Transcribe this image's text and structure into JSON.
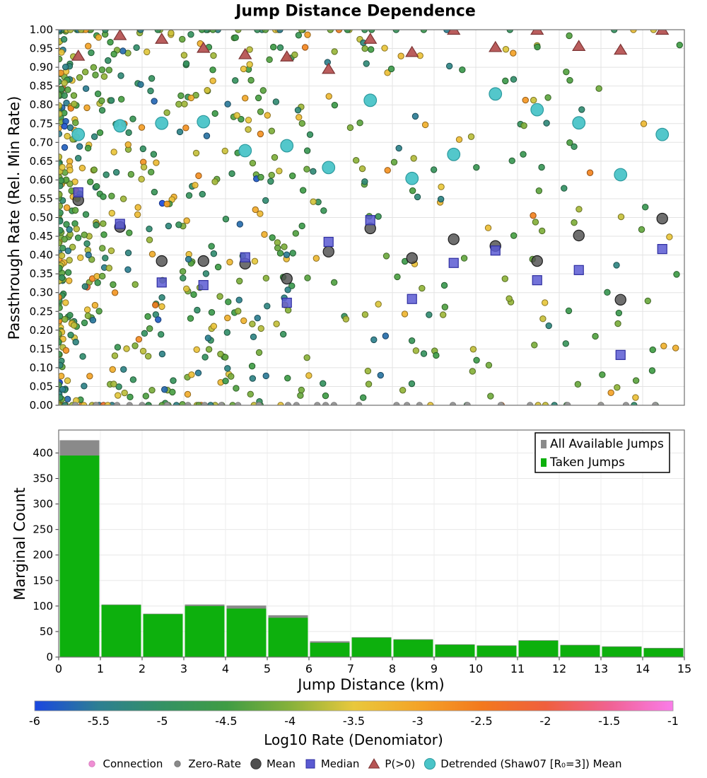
{
  "chart_data": [
    {
      "type": "scatter",
      "title": "Jump Distance Dependence",
      "ylabel": "Passthrough Rate (Rel. Min Rate)",
      "xlabel": "",
      "xlim": [
        0,
        15
      ],
      "ylim": [
        0,
        1
      ],
      "grid": true,
      "yticks": [
        "0.00",
        "0.05",
        "0.10",
        "0.15",
        "0.20",
        "0.25",
        "0.30",
        "0.35",
        "0.40",
        "0.45",
        "0.50",
        "0.55",
        "0.60",
        "0.65",
        "0.70",
        "0.75",
        "0.80",
        "0.85",
        "0.90",
        "0.95",
        "1.00"
      ],
      "series": [
        {
          "name": "Mean",
          "marker": "circle-large",
          "color": "#4f4f4f",
          "edge": "#1c1c1c",
          "opacity": 0.82,
          "points": [
            [
              0.47,
              0.546
            ],
            [
              1.47,
              0.475
            ],
            [
              2.47,
              0.384
            ],
            [
              3.47,
              0.384
            ],
            [
              4.47,
              0.377
            ],
            [
              5.47,
              0.337
            ],
            [
              6.47,
              0.409
            ],
            [
              7.47,
              0.471
            ],
            [
              8.47,
              0.392
            ],
            [
              9.47,
              0.442
            ],
            [
              10.47,
              0.424
            ],
            [
              11.47,
              0.384
            ],
            [
              12.47,
              0.452
            ],
            [
              13.47,
              0.281
            ],
            [
              14.47,
              0.497
            ]
          ]
        },
        {
          "name": "Median",
          "marker": "square",
          "color": "#5a5ad2",
          "edge": "#2e2ea0",
          "opacity": 0.85,
          "points": [
            [
              0.47,
              0.567
            ],
            [
              1.47,
              0.483
            ],
            [
              2.47,
              0.327
            ],
            [
              3.47,
              0.32
            ],
            [
              4.47,
              0.394
            ],
            [
              5.47,
              0.273
            ],
            [
              6.47,
              0.435
            ],
            [
              7.47,
              0.493
            ],
            [
              8.47,
              0.283
            ],
            [
              9.47,
              0.379
            ],
            [
              10.47,
              0.412
            ],
            [
              11.47,
              0.333
            ],
            [
              12.47,
              0.36
            ],
            [
              13.47,
              0.134
            ],
            [
              14.47,
              0.416
            ]
          ]
        },
        {
          "name": "P(>0)",
          "marker": "triangle",
          "color": "#b65454",
          "edge": "#7c3434",
          "opacity": 0.95,
          "points": [
            [
              0.47,
              0.93
            ],
            [
              1.47,
              0.985
            ],
            [
              2.47,
              0.975
            ],
            [
              3.47,
              0.951
            ],
            [
              4.47,
              0.934
            ],
            [
              5.47,
              0.928
            ],
            [
              6.47,
              0.895
            ],
            [
              7.47,
              0.975
            ],
            [
              8.47,
              0.94
            ],
            [
              9.47,
              0.999
            ],
            [
              10.47,
              0.953
            ],
            [
              11.47,
              0.999
            ],
            [
              12.47,
              0.956
            ],
            [
              13.47,
              0.946
            ],
            [
              14.47,
              0.999
            ]
          ]
        },
        {
          "name": "Detrended (Shaw07 [R₀=3]) Mean",
          "marker": "circle-medium",
          "color": "#4ac4c8",
          "edge": "#2d9a9e",
          "opacity": 0.95,
          "points": [
            [
              0.47,
              0.721
            ],
            [
              1.47,
              0.744
            ],
            [
              2.47,
              0.751
            ],
            [
              3.47,
              0.755
            ],
            [
              4.47,
              0.678
            ],
            [
              5.47,
              0.691
            ],
            [
              6.47,
              0.633
            ],
            [
              7.47,
              0.812
            ],
            [
              8.47,
              0.604
            ],
            [
              9.47,
              0.668
            ],
            [
              10.47,
              0.829
            ],
            [
              11.47,
              0.787
            ],
            [
              12.47,
              0.752
            ],
            [
              13.47,
              0.614
            ],
            [
              14.47,
              0.721
            ]
          ]
        },
        {
          "name": "Zero-Rate",
          "marker": "dot",
          "color": "#9a9a9a",
          "edge": "#7d7d7d",
          "opacity": 1,
          "points": [
            [
              0.4,
              0
            ],
            [
              0.9,
              0
            ],
            [
              1.4,
              0
            ],
            [
              1.7,
              0
            ],
            [
              2.0,
              0
            ],
            [
              2.6,
              0
            ],
            [
              3.1,
              0
            ],
            [
              3.5,
              0
            ],
            [
              3.9,
              0
            ],
            [
              4.3,
              0
            ],
            [
              4.8,
              0
            ],
            [
              5.5,
              0
            ],
            [
              5.7,
              0
            ],
            [
              6.2,
              0
            ],
            [
              6.4,
              0
            ],
            [
              6.6,
              0
            ],
            [
              7.2,
              0
            ],
            [
              8.1,
              0
            ],
            [
              8.35,
              0
            ],
            [
              8.65,
              0
            ],
            [
              9.45,
              0
            ],
            [
              9.8,
              0
            ],
            [
              10.6,
              0
            ],
            [
              11.3,
              0
            ],
            [
              12.2,
              0
            ],
            [
              13.0,
              0
            ],
            [
              13.6,
              0
            ],
            [
              14.3,
              0
            ]
          ]
        }
      ],
      "background_points": {
        "note": "dense colored connection cloud, color = Log10 rate via colorbar colormap",
        "seed": 42,
        "bin_counts": [
          280,
          72,
          60,
          70,
          66,
          54,
          20,
          27,
          24,
          17,
          16,
          22,
          17,
          14,
          12
        ],
        "top_edge_fraction": 0.08,
        "bottom_edge_fraction": 0.04,
        "value_segments": [
          [
            -6.0,
            -5.55,
            0.03
          ],
          [
            -5.55,
            -4.95,
            0.17
          ],
          [
            -4.95,
            -4.35,
            0.28
          ],
          [
            -4.35,
            -3.65,
            0.3
          ],
          [
            -3.65,
            -3.15,
            0.15
          ],
          [
            -3.15,
            -2.55,
            0.06
          ],
          [
            -2.55,
            -2.2,
            0.01
          ]
        ]
      }
    },
    {
      "type": "bar",
      "ylabel": "Marginal Count",
      "xlabel": "Jump Distance (km)",
      "categories": [
        "0-1",
        "1-2",
        "2-3",
        "3-4",
        "4-5",
        "5-6",
        "6-7",
        "7-8",
        "8-9",
        "9-10",
        "10-11",
        "11-12",
        "12-13",
        "13-14",
        "14-15"
      ],
      "series": [
        {
          "name": "All Available Jumps",
          "color": "#8a8a8a",
          "values": [
            425,
            103,
            85,
            103,
            101,
            82,
            31,
            39,
            35,
            25,
            23,
            33,
            24,
            21,
            18
          ]
        },
        {
          "name": "Taken Jumps",
          "color": "#0db00d",
          "values": [
            395,
            102,
            84,
            100,
            95,
            77,
            28,
            38,
            34,
            24,
            22,
            32,
            23,
            20,
            17
          ]
        }
      ],
      "yticks": [
        0,
        50,
        100,
        150,
        200,
        250,
        300,
        350,
        400
      ],
      "xticks": [
        0,
        1,
        2,
        3,
        4,
        5,
        6,
        7,
        8,
        9,
        10,
        11,
        12,
        13,
        14,
        15
      ],
      "ylim": [
        0,
        445
      ],
      "legend_position": "top-right"
    },
    {
      "type": "colorbar",
      "label": "Log10 Rate (Denomiator)",
      "ticks": [
        "-6",
        "-5.5",
        "-5",
        "-4.5",
        "-4",
        "-3.5",
        "-3",
        "-2.5",
        "-2",
        "-1.5",
        "-1"
      ],
      "range": [
        -6,
        -1
      ],
      "stops": [
        [
          0.0,
          "#1a47e0"
        ],
        [
          0.1,
          "#2d7f92"
        ],
        [
          0.2,
          "#349164"
        ],
        [
          0.3,
          "#3f9c44"
        ],
        [
          0.4,
          "#86b13a"
        ],
        [
          0.5,
          "#e9c83c"
        ],
        [
          0.6,
          "#f4a427"
        ],
        [
          0.7,
          "#f3791e"
        ],
        [
          0.8,
          "#ef5f3d"
        ],
        [
          0.9,
          "#f06292"
        ],
        [
          1.0,
          "#fa7ce9"
        ]
      ]
    }
  ],
  "legend_bottom": {
    "items": [
      {
        "label": "Connection",
        "marker": "dot-small",
        "color": "#f08fd4",
        "edge": "#d97ec0"
      },
      {
        "label": "Zero-Rate",
        "marker": "dot-small",
        "color": "#8a8a8a",
        "edge": "#757575"
      },
      {
        "label": "Mean",
        "marker": "circle-large",
        "color": "#4f4f4f",
        "edge": "#333333"
      },
      {
        "label": "Median",
        "marker": "square",
        "color": "#5a5ad2",
        "edge": "#2e2ea0"
      },
      {
        "label": "P(>0)",
        "marker": "triangle",
        "color": "#b65454",
        "edge": "#7c3434"
      },
      {
        "label": "Detrended (Shaw07 [R₀=3]) Mean",
        "marker": "circle-medium",
        "color": "#4ac4c8",
        "edge": "#2d9a9e"
      }
    ]
  }
}
